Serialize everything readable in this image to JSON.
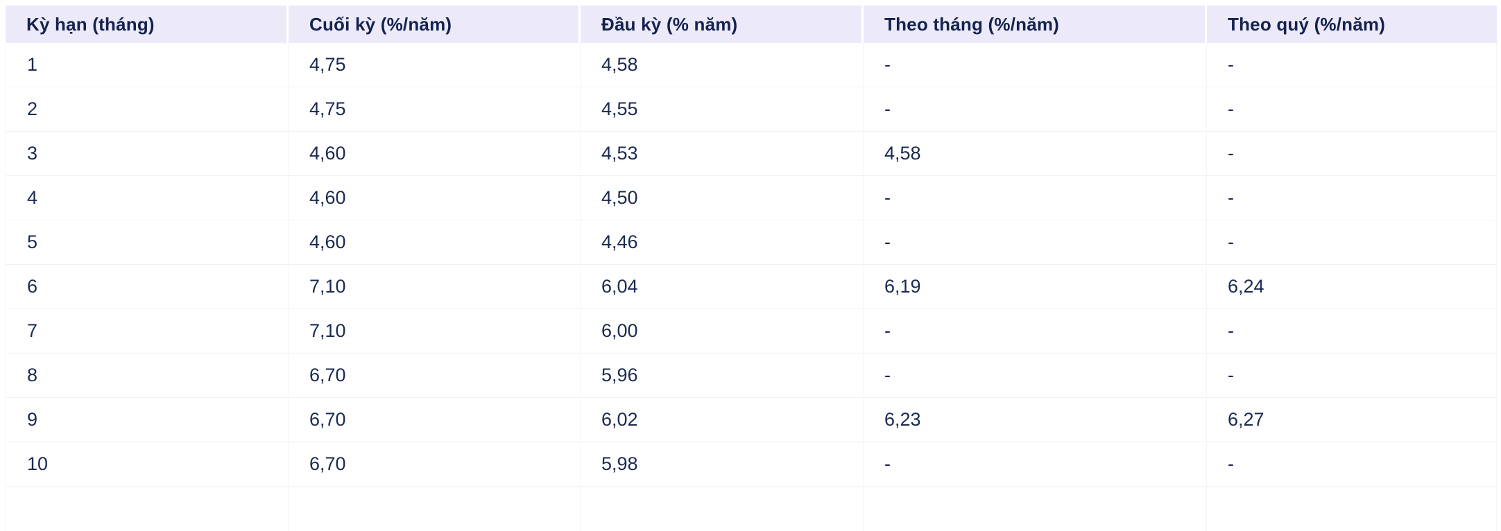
{
  "colors": {
    "header_bg": "#eceaf9",
    "header_text": "#14224e",
    "body_text": "#1a2a52",
    "row_border": "#f1f1f4",
    "page_bg": "#ffffff"
  },
  "table": {
    "columns": [
      {
        "key": "term",
        "label": "Kỳ hạn (tháng)"
      },
      {
        "key": "end-of-period",
        "label": "Cuối kỳ (%/năm)"
      },
      {
        "key": "begin-of-period",
        "label": "Đầu kỳ (% năm)"
      },
      {
        "key": "monthly",
        "label": "Theo tháng (%/năm)"
      },
      {
        "key": "quarterly",
        "label": "Theo quý (%/năm)"
      }
    ],
    "rows": [
      [
        "1",
        "4,75",
        "4,58",
        "-",
        "-"
      ],
      [
        "2",
        "4,75",
        "4,55",
        "-",
        "-"
      ],
      [
        "3",
        "4,60",
        "4,53",
        "4,58",
        "-"
      ],
      [
        "4",
        "4,60",
        "4,50",
        "-",
        "-"
      ],
      [
        "5",
        "4,60",
        "4,46",
        "-",
        "-"
      ],
      [
        "6",
        "7,10",
        "6,04",
        "6,19",
        "6,24"
      ],
      [
        "7",
        "7,10",
        "6,00",
        "-",
        "-"
      ],
      [
        "8",
        "6,70",
        "5,96",
        "-",
        "-"
      ],
      [
        "9",
        "6,70",
        "6,02",
        "6,23",
        "6,27"
      ],
      [
        "10",
        "6,70",
        "5,98",
        "-",
        "-"
      ]
    ]
  },
  "chart_data": {
    "type": "table",
    "title": "",
    "columns": [
      "Kỳ hạn (tháng)",
      "Cuối kỳ (%/năm)",
      "Đầu kỳ (% năm)",
      "Theo tháng (%/năm)",
      "Theo quý (%/năm)"
    ],
    "rows": [
      {
        "term_months": 1,
        "end_of_period": 4.75,
        "begin_of_period": 4.58,
        "monthly": null,
        "quarterly": null
      },
      {
        "term_months": 2,
        "end_of_period": 4.75,
        "begin_of_period": 4.55,
        "monthly": null,
        "quarterly": null
      },
      {
        "term_months": 3,
        "end_of_period": 4.6,
        "begin_of_period": 4.53,
        "monthly": 4.58,
        "quarterly": null
      },
      {
        "term_months": 4,
        "end_of_period": 4.6,
        "begin_of_period": 4.5,
        "monthly": null,
        "quarterly": null
      },
      {
        "term_months": 5,
        "end_of_period": 4.6,
        "begin_of_period": 4.46,
        "monthly": null,
        "quarterly": null
      },
      {
        "term_months": 6,
        "end_of_period": 7.1,
        "begin_of_period": 6.04,
        "monthly": 6.19,
        "quarterly": 6.24
      },
      {
        "term_months": 7,
        "end_of_period": 7.1,
        "begin_of_period": 6.0,
        "monthly": null,
        "quarterly": null
      },
      {
        "term_months": 8,
        "end_of_period": 6.7,
        "begin_of_period": 5.96,
        "monthly": null,
        "quarterly": null
      },
      {
        "term_months": 9,
        "end_of_period": 6.7,
        "begin_of_period": 6.02,
        "monthly": 6.23,
        "quarterly": 6.27
      },
      {
        "term_months": 10,
        "end_of_period": 6.7,
        "begin_of_period": 5.98,
        "monthly": null,
        "quarterly": null
      }
    ],
    "empty_cell_marker": "-",
    "decimal_separator": ",",
    "layout_hints": {
      "header_background": "#eceaf9",
      "text_color": "#1a2a52",
      "grid": "light horizontal and vertical separators",
      "last_row_clipped_at_bottom": true
    }
  }
}
